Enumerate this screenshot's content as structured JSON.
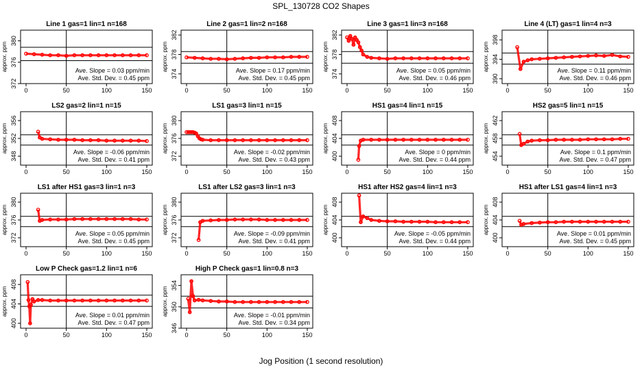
{
  "title": "SPL_130728  CO2 Shapes",
  "xlabel": "Jog Position (1 second resolution)",
  "ylabel": "approx. ppm",
  "slope_prefix": "Ave. Slope = ",
  "slope_unit": " ppm/min",
  "sd_prefix": "Ave. Std. Dev. = ",
  "sd_unit": " ppm",
  "colors": {
    "points": "#ff0000",
    "lines": "#000000",
    "background": "#ffffff"
  },
  "chart_data": [
    {
      "type": "scatter",
      "title": "Line 1 gas=1 lin=1 n=168",
      "xlim": [
        0,
        150
      ],
      "xticks": [
        0,
        50,
        100,
        150
      ],
      "ylim": [
        372,
        382
      ],
      "yticks": [
        372,
        376,
        380
      ],
      "hlines": [
        376.3,
        378.8
      ],
      "vline": 50,
      "slope": "0.03",
      "sd": "0.45",
      "series": [
        {
          "x": [
            0,
            10,
            20,
            30,
            40,
            50,
            60,
            70,
            80,
            90,
            100,
            110,
            120,
            130,
            140,
            150
          ],
          "y": [
            377.6,
            377.5,
            377.4,
            377.3,
            377.3,
            377.2,
            377.3,
            377.3,
            377.3,
            377.3,
            377.3,
            377.3,
            377.3,
            377.3,
            377.3,
            377.3
          ]
        }
      ]
    },
    {
      "type": "scatter",
      "title": "Line 2 gas=1 lin=2 n=168",
      "xlim": [
        0,
        150
      ],
      "xticks": [
        0,
        50,
        100,
        150
      ],
      "ylim": [
        372,
        383
      ],
      "yticks": [
        374,
        378,
        382
      ],
      "hlines": [
        376.2,
        378.6
      ],
      "vline": 50,
      "slope": "0.17",
      "sd": "0.45",
      "series": [
        {
          "x": [
            0,
            10,
            20,
            30,
            40,
            50,
            60,
            70,
            80,
            90,
            100,
            110,
            120,
            130,
            140,
            150
          ],
          "y": [
            377.4,
            377.3,
            377.2,
            377.1,
            377.1,
            377.0,
            377.1,
            377.2,
            377.3,
            377.3,
            377.4,
            377.4,
            377.4,
            377.5,
            377.5,
            377.5
          ]
        }
      ]
    },
    {
      "type": "scatter",
      "title": "Line 3 gas=1 lin=3 n=168",
      "xlim": [
        0,
        150
      ],
      "xticks": [
        0,
        50,
        100,
        150
      ],
      "ylim": [
        372,
        383
      ],
      "yticks": [
        374,
        378,
        382
      ],
      "hlines": [
        376.2,
        378.6
      ],
      "vline": 50,
      "slope": "0.05",
      "sd": "0.46",
      "series": [
        {
          "x": [
            0,
            2,
            4,
            6,
            8,
            10,
            12,
            14,
            16,
            18,
            20,
            25,
            30,
            40,
            50,
            60,
            70,
            80,
            90,
            100,
            110,
            120,
            130,
            140,
            150
          ],
          "y": [
            381.5,
            380.8,
            381.8,
            381.2,
            380.0,
            381.5,
            381.0,
            380.5,
            379.5,
            378.8,
            378.0,
            377.5,
            377.3,
            377.2,
            377.1,
            377.2,
            377.2,
            377.2,
            377.2,
            377.2,
            377.2,
            377.2,
            377.2,
            377.2,
            377.2
          ]
        }
      ]
    },
    {
      "type": "scatter",
      "title": "Line 4 (LT) gas=1 lin=4 n=3",
      "xlim": [
        0,
        150
      ],
      "xticks": [
        0,
        50,
        100,
        150
      ],
      "ylim": [
        389,
        400
      ],
      "yticks": [
        390,
        394,
        398
      ],
      "hlines": [
        393.0,
        395.3
      ],
      "vline": 50,
      "slope": "0.11",
      "sd": "0.46",
      "series": [
        {
          "x": [
            12,
            16,
            20,
            25,
            30,
            40,
            50,
            60,
            70,
            80,
            90,
            100,
            110,
            120,
            130,
            140,
            150
          ],
          "y": [
            396.5,
            392.0,
            393.5,
            393.8,
            394.0,
            394.1,
            394.2,
            394.3,
            394.4,
            394.5,
            394.6,
            394.7,
            394.8,
            394.7,
            394.9,
            394.6,
            394.5
          ]
        }
      ]
    },
    {
      "type": "scatter",
      "title": "LS2 gas=2 lin=1 n=15",
      "xlim": [
        0,
        150
      ],
      "xticks": [
        0,
        50,
        100,
        150
      ],
      "ylim": [
        346,
        358
      ],
      "yticks": [
        348,
        352,
        356
      ],
      "hlines": [
        350.5,
        352.8
      ],
      "vline": 50,
      "slope": "-0.06",
      "sd": "0.41",
      "series": [
        {
          "x": [
            15,
            17,
            20,
            30,
            40,
            50,
            60,
            70,
            80,
            90,
            100,
            110,
            120,
            130,
            140,
            150
          ],
          "y": [
            353.5,
            352.2,
            351.9,
            351.8,
            351.7,
            351.7,
            351.7,
            351.6,
            351.6,
            351.6,
            351.5,
            351.5,
            351.5,
            351.5,
            351.5,
            351.4
          ]
        }
      ]
    },
    {
      "type": "scatter",
      "title": "LS1 gas=3 lin=1 n=15",
      "xlim": [
        0,
        150
      ],
      "xticks": [
        0,
        50,
        100,
        150
      ],
      "ylim": [
        370,
        382
      ],
      "yticks": [
        372,
        376,
        380
      ],
      "hlines": [
        374.5,
        376.8
      ],
      "vline": 50,
      "slope": "-0.02",
      "sd": "0.43",
      "series": [
        {
          "x": [
            0,
            2,
            4,
            6,
            8,
            10,
            12,
            14,
            16,
            18,
            20,
            30,
            40,
            50,
            60,
            70,
            80,
            90,
            100,
            110,
            120,
            130,
            140,
            150
          ],
          "y": [
            377.4,
            377.4,
            377.4,
            377.4,
            377.4,
            377.3,
            377.1,
            376.5,
            376.0,
            375.8,
            375.7,
            375.6,
            375.6,
            375.6,
            375.6,
            375.6,
            375.6,
            375.6,
            375.6,
            375.6,
            375.6,
            375.6,
            375.6,
            375.6
          ]
        }
      ]
    },
    {
      "type": "scatter",
      "title": "HS1 gas=4 lin=1 n=15",
      "xlim": [
        0,
        150
      ],
      "xticks": [
        0,
        50,
        100,
        150
      ],
      "ylim": [
        398,
        410
      ],
      "yticks": [
        400,
        404,
        408
      ],
      "hlines": [
        402.5,
        404.8
      ],
      "vline": 50,
      "slope": "0",
      "sd": "0.44",
      "series": [
        {
          "x": [
            14,
            15,
            17,
            20,
            30,
            40,
            50,
            60,
            70,
            80,
            90,
            100,
            110,
            120,
            130,
            140,
            150
          ],
          "y": [
            399.2,
            402.3,
            403.5,
            403.7,
            403.7,
            403.7,
            403.7,
            403.7,
            403.7,
            403.7,
            403.7,
            403.7,
            403.7,
            403.7,
            403.7,
            403.7,
            403.7
          ]
        }
      ]
    },
    {
      "type": "scatter",
      "title": "HS2 gas=5 lin=1 n=15",
      "xlim": [
        0,
        150
      ],
      "xticks": [
        0,
        50,
        100,
        150
      ],
      "ylim": [
        452,
        464
      ],
      "yticks": [
        454,
        458,
        462
      ],
      "hlines": [
        456.5,
        458.8
      ],
      "vline": 50,
      "slope": "0.1",
      "sd": "0.47",
      "series": [
        {
          "x": [
            15,
            17,
            20,
            25,
            30,
            40,
            50,
            60,
            70,
            80,
            90,
            100,
            110,
            120,
            130,
            140,
            150
          ],
          "y": [
            459.0,
            456.5,
            456.8,
            457.3,
            457.5,
            457.6,
            457.6,
            457.7,
            457.7,
            457.7,
            457.7,
            457.8,
            457.8,
            457.8,
            457.8,
            457.9,
            457.9
          ]
        }
      ]
    },
    {
      "type": "scatter",
      "title": "LS1 after HS1 gas=3 lin=1 n=3",
      "xlim": [
        0,
        150
      ],
      "xticks": [
        0,
        50,
        100,
        150
      ],
      "ylim": [
        370,
        382
      ],
      "yticks": [
        372,
        376,
        380
      ],
      "hlines": [
        374.5,
        376.8
      ],
      "vline": 50,
      "slope": "0.05",
      "sd": "0.45",
      "series": [
        {
          "x": [
            15,
            17,
            20,
            30,
            40,
            50,
            60,
            70,
            80,
            90,
            100,
            110,
            120,
            130,
            140,
            150
          ],
          "y": [
            378.3,
            375.8,
            376.0,
            376.1,
            376.1,
            376.1,
            376.2,
            376.2,
            376.2,
            376.2,
            376.2,
            376.2,
            376.2,
            376.2,
            376.1,
            376.1
          ]
        }
      ]
    },
    {
      "type": "scatter",
      "title": "LS1 after LS2 gas=3 lin=1 n=3",
      "xlim": [
        0,
        150
      ],
      "xticks": [
        0,
        50,
        100,
        150
      ],
      "ylim": [
        370,
        382
      ],
      "yticks": [
        372,
        376,
        380
      ],
      "hlines": [
        374.5,
        376.8
      ],
      "vline": 50,
      "slope": "-0.09",
      "sd": "0.41",
      "series": [
        {
          "x": [
            15,
            17,
            20,
            30,
            40,
            50,
            60,
            70,
            80,
            90,
            100,
            110,
            120,
            130,
            140,
            150
          ],
          "y": [
            371.5,
            375.5,
            375.8,
            375.9,
            376.0,
            376.0,
            376.1,
            376.1,
            376.1,
            376.1,
            376.0,
            376.0,
            376.0,
            376.0,
            376.0,
            376.0
          ]
        }
      ]
    },
    {
      "type": "scatter",
      "title": "HS1 after HS2 gas=4 lin=1 n=3",
      "xlim": [
        0,
        150
      ],
      "xticks": [
        0,
        50,
        100,
        150
      ],
      "ylim": [
        398,
        410
      ],
      "yticks": [
        400,
        404,
        408
      ],
      "hlines": [
        402.5,
        404.8
      ],
      "vline": 50,
      "slope": "-0.05",
      "sd": "0.44",
      "series": [
        {
          "x": [
            15,
            17,
            20,
            25,
            30,
            40,
            50,
            60,
            70,
            80,
            90,
            100,
            110,
            120,
            130,
            140,
            150
          ],
          "y": [
            409.5,
            403.5,
            404.8,
            404.4,
            404.0,
            403.8,
            403.7,
            403.7,
            403.6,
            403.6,
            403.6,
            403.6,
            403.5,
            403.5,
            403.5,
            403.5,
            403.5
          ]
        }
      ]
    },
    {
      "type": "scatter",
      "title": "HS1 after LS1 gas=4 lin=1 n=3",
      "xlim": [
        0,
        150
      ],
      "xticks": [
        0,
        50,
        100,
        150
      ],
      "ylim": [
        398,
        410
      ],
      "yticks": [
        400,
        404,
        408
      ],
      "hlines": [
        402.5,
        404.8
      ],
      "vline": 50,
      "slope": "0.01",
      "sd": "0.45",
      "series": [
        {
          "x": [
            15,
            17,
            20,
            30,
            40,
            50,
            60,
            70,
            80,
            90,
            100,
            110,
            120,
            130,
            140,
            150
          ],
          "y": [
            403.8,
            402.9,
            403.1,
            403.3,
            403.4,
            403.5,
            403.5,
            403.6,
            403.6,
            403.6,
            403.6,
            403.6,
            403.6,
            403.6,
            403.6,
            403.6
          ]
        }
      ]
    },
    {
      "type": "scatter",
      "title": "Low P Check gas=1.2 lin=1 n=6",
      "xlim": [
        0,
        150
      ],
      "xticks": [
        0,
        50,
        100,
        150
      ],
      "ylim": [
        399,
        410
      ],
      "yticks": [
        400,
        404,
        408
      ],
      "hlines": [
        403.5,
        405.8
      ],
      "vline": 50,
      "slope": "0.01",
      "sd": "0.47",
      "series": [
        {
          "x": [
            2,
            3,
            4,
            5,
            6,
            8,
            10,
            15,
            20,
            30,
            40,
            50,
            60,
            70,
            80,
            90,
            100,
            110,
            120,
            130,
            140,
            150
          ],
          "y": [
            408.5,
            404.8,
            403.5,
            400.0,
            403.8,
            405.0,
            404.5,
            404.8,
            404.8,
            404.7,
            404.7,
            404.7,
            404.7,
            404.7,
            404.7,
            404.7,
            404.7,
            404.7,
            404.7,
            404.7,
            404.7,
            404.7
          ]
        }
      ]
    },
    {
      "type": "scatter",
      "title": "High P Check gas=1 lin=0.8 n=3",
      "xlim": [
        0,
        150
      ],
      "xticks": [
        0,
        50,
        100,
        150
      ],
      "ylim": [
        346,
        356
      ],
      "yticks": [
        346,
        350,
        354
      ],
      "hlines": [
        349.8,
        352.0
      ],
      "vline": 50,
      "slope": "-0.01",
      "sd": "0.34",
      "series": [
        {
          "x": [
            2,
            4,
            6,
            8,
            10,
            15,
            20,
            30,
            40,
            50,
            60,
            70,
            80,
            90,
            100,
            110,
            120,
            130,
            140,
            150
          ],
          "y": [
            351.5,
            349.0,
            354.8,
            352.0,
            351.2,
            351.3,
            351.2,
            351.1,
            351.0,
            351.0,
            350.9,
            350.9,
            350.9,
            350.9,
            350.9,
            350.9,
            350.9,
            350.9,
            350.9,
            350.9
          ]
        }
      ]
    }
  ]
}
